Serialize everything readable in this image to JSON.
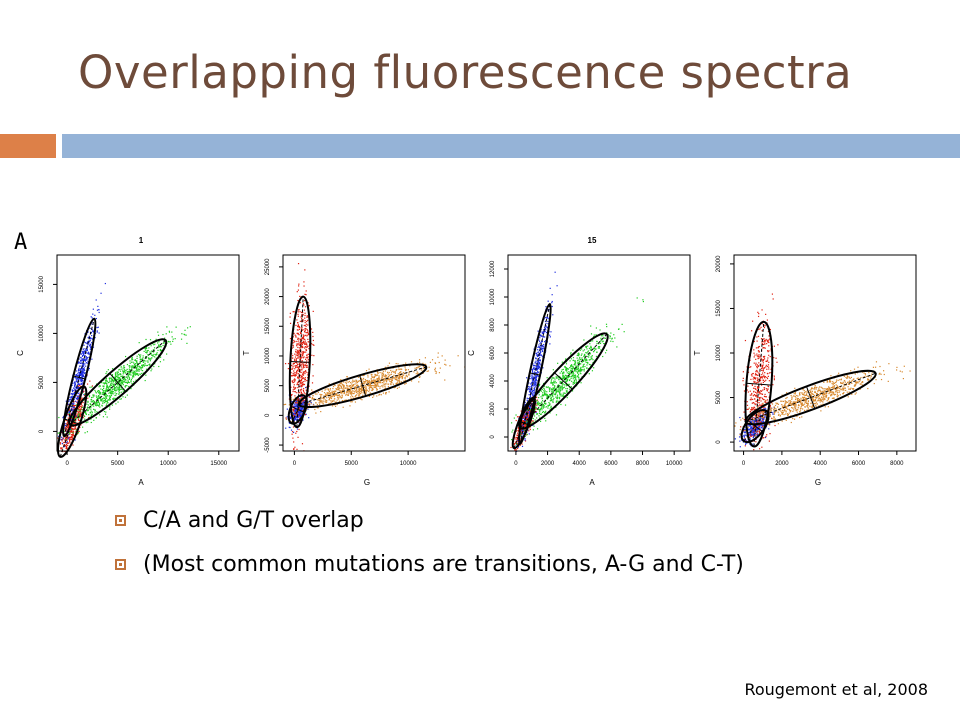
{
  "slide": {
    "title": "Overlapping fluorescence spectra",
    "panel_letter": "A",
    "bullets": [
      "C/A and G/T overlap",
      "(Most common mutations are transitions, A-G and C-T)"
    ],
    "citation": "Rougemont et al, 2008"
  },
  "colors": {
    "title": "#6e4b3a",
    "accent_orange": "#dd8048",
    "accent_blue": "#95b3d7",
    "scatter_red": "#e02010",
    "scatter_blue": "#1f2ee0",
    "scatter_green": "#22cc22",
    "scatter_orange": "#d88a30"
  },
  "chart_data": [
    {
      "type": "scatter",
      "title": "1",
      "xlabel": "A",
      "ylabel": "C",
      "xlim": [
        -1000,
        17000
      ],
      "ylim": [
        -2000,
        18000
      ],
      "xticks": [
        "0",
        "5000",
        "10000",
        "15000"
      ],
      "yticks": [
        "0",
        "5000",
        "10000",
        "15000"
      ],
      "clusters": [
        {
          "color": "red",
          "center": [
            500,
            1000
          ]
        },
        {
          "color": "blue",
          "center": [
            1200,
            5500
          ]
        },
        {
          "color": "green",
          "center": [
            5000,
            5000
          ]
        }
      ]
    },
    {
      "type": "scatter",
      "title": "",
      "xlabel": "G",
      "ylabel": "T",
      "xlim": [
        -1000,
        15000
      ],
      "ylim": [
        -6000,
        27000
      ],
      "xticks": [
        "0",
        "5000",
        "10000"
      ],
      "yticks": [
        "-5000",
        "0",
        "5000",
        "10000",
        "15000",
        "20000",
        "25000"
      ],
      "clusters": [
        {
          "color": "blue",
          "center": [
            300,
            1000
          ]
        },
        {
          "color": "red",
          "center": [
            500,
            9000
          ]
        },
        {
          "color": "orange",
          "center": [
            6000,
            5000
          ]
        }
      ]
    },
    {
      "type": "scatter",
      "title": "15",
      "xlabel": "A",
      "ylabel": "C",
      "xlim": [
        -500,
        11000
      ],
      "ylim": [
        -1000,
        13000
      ],
      "xticks": [
        "0",
        "2000",
        "4000",
        "6000",
        "8000",
        "10000"
      ],
      "yticks": [
        "0",
        "2000",
        "4000",
        "6000",
        "8000",
        "10000",
        "12000"
      ],
      "clusters": [
        {
          "color": "red",
          "center": [
            500,
            1000
          ]
        },
        {
          "color": "blue",
          "center": [
            1200,
            4500
          ]
        },
        {
          "color": "green",
          "center": [
            3000,
            4000
          ]
        }
      ]
    },
    {
      "type": "scatter",
      "title": "",
      "xlabel": "G",
      "ylabel": "T",
      "xlim": [
        -500,
        9000
      ],
      "ylim": [
        -1000,
        21000
      ],
      "xticks": [
        "0",
        "2000",
        "4000",
        "6000",
        "8000"
      ],
      "yticks": [
        "0",
        "5000",
        "10000",
        "15000",
        "20000"
      ],
      "clusters": [
        {
          "color": "blue",
          "center": [
            600,
            1800
          ]
        },
        {
          "color": "red",
          "center": [
            800,
            6500
          ]
        },
        {
          "color": "orange",
          "center": [
            3500,
            5000
          ]
        }
      ]
    }
  ]
}
